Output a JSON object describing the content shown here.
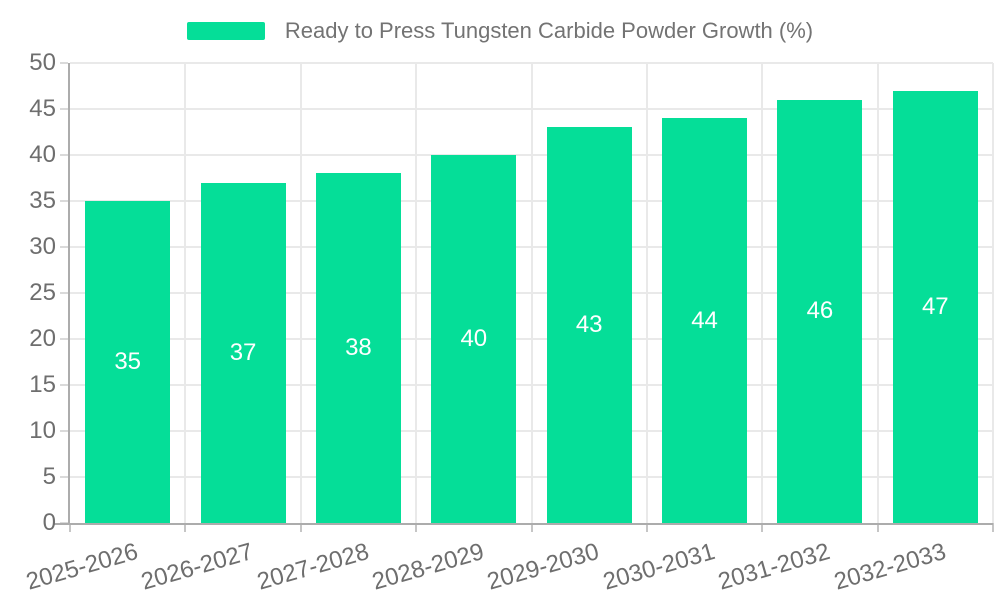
{
  "chart_data": {
    "type": "bar",
    "title": "Ready to Press Tungsten Carbide Powder Growth (%)",
    "categories": [
      "2025-2026",
      "2026-2027",
      "2027-2028",
      "2028-2029",
      "2029-2030",
      "2030-2031",
      "2031-2032",
      "2032-2033"
    ],
    "series": [
      {
        "name": "Ready to Press Tungsten Carbide Powder Growth (%)",
        "values": [
          35,
          37,
          38,
          40,
          43,
          44,
          46,
          47
        ]
      }
    ],
    "xlabel": "",
    "ylabel": "",
    "ylim": [
      0,
      50
    ],
    "y_ticks": [
      0,
      5,
      10,
      15,
      20,
      25,
      30,
      35,
      40,
      45,
      50
    ],
    "grid": true,
    "legend_position": "top-center",
    "data_labels_position": "inside-center",
    "colors": {
      "bar": "#05DE98",
      "value_label": "#FFFFFF",
      "axis_text": "#6E6E6E",
      "legend_text": "#737373",
      "grid_line": "#E9E9E9",
      "axis_line": "#ACACAC",
      "background": "#FFFFFF"
    }
  }
}
